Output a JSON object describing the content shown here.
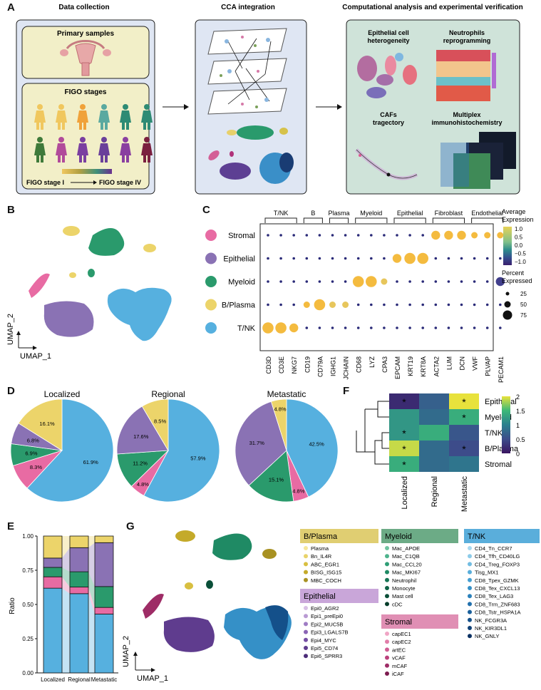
{
  "panel_letters": [
    "A",
    "B",
    "C",
    "D",
    "E",
    "F",
    "G"
  ],
  "panelA": {
    "col1_title": "Data collection",
    "col2_title": "CCA integration",
    "col3_title": "Computational analysis  and  experimental verification",
    "primary_title": "Primary samples",
    "figo_title": "FIGO stages",
    "figo_start": "FIGO stage I",
    "figo_end": "FIGO stage IV",
    "col3_labels": [
      "Epithelial cell",
      "heterogeneity",
      "Neutrophils",
      "reprogramming",
      "CAFs",
      "tragectory",
      "Multiplex",
      "immunohistochemistry"
    ],
    "figure_colors": [
      "#f0c75e",
      "#f0c75e",
      "#f0a23a",
      "#5aa9a0",
      "#2e8b74",
      "#2e8b74",
      "#3f7a3a",
      "#b14b9a",
      "#7a3fa0",
      "#6a3f9a",
      "#8a3fa0",
      "#7a1f3f"
    ]
  },
  "panelB": {
    "xlabel": "UMAP_1",
    "ylabel": "UMAP_2"
  },
  "panelC": {
    "rows": [
      {
        "name": "Stromal",
        "color": "#e86ba3"
      },
      {
        "name": "Epithelial",
        "color": "#8a72b4"
      },
      {
        "name": "Myeloid",
        "color": "#2a9a6c"
      },
      {
        "name": "B/Plasma",
        "color": "#ecd46a"
      },
      {
        "name": "T/NK",
        "color": "#56b0df"
      }
    ],
    "genes": [
      "CD3D",
      "CD3E",
      "NKG7",
      "CD19",
      "CD79A",
      "IGHG1",
      "JCHAIN",
      "CD68",
      "LYZ",
      "CPA3",
      "EPCAM",
      "KRT19",
      "KRT8A",
      "ACTA2",
      "LUM",
      "DCN",
      "VWF",
      "PLVAP",
      "PECAM1"
    ],
    "groups": [
      {
        "name": "T/NK",
        "from": 0,
        "to": 2
      },
      {
        "name": "B",
        "from": 3,
        "to": 4
      },
      {
        "name": "Plasma",
        "from": 5,
        "to": 6
      },
      {
        "name": "Myeloid",
        "from": 7,
        "to": 9
      },
      {
        "name": "Epithelial",
        "from": 10,
        "to": 12
      },
      {
        "name": "Fibroblast",
        "from": 13,
        "to": 15
      },
      {
        "name": "Endothelial",
        "from": 16,
        "to": 18
      }
    ],
    "legend_title1": "Average",
    "legend_title2": "Expression",
    "legend_ticks": [
      "1.0",
      "0.5",
      "0.0",
      "−0.5",
      "−1.0"
    ],
    "pct_title1": "Percent",
    "pct_title2": "Expressed",
    "pct_values": [
      "25",
      "50",
      "75"
    ]
  },
  "panelD": {
    "pies": [
      {
        "title": "Localized",
        "values": [
          61.9,
          8.3,
          6.9,
          6.8,
          16.1
        ],
        "labels": [
          "61.9%",
          "8.3%",
          "6.9%",
          "6.8%",
          "16.1%"
        ]
      },
      {
        "title": "Regional",
        "values": [
          57.9,
          4.8,
          11.2,
          17.6,
          8.5
        ],
        "labels": [
          "57.9%",
          "4.8%",
          "11.2%",
          "17.6%",
          "8.5%"
        ]
      },
      {
        "title": "Metastatic",
        "values": [
          42.5,
          4.8,
          15.1,
          31.7,
          4.8
        ],
        "labels": [
          "42.5%",
          "4.8%",
          "15.1%",
          "31.7%",
          "4.8%"
        ]
      }
    ]
  },
  "panelE": {
    "ylabel": "Ratio",
    "yticks": [
      "0.00",
      "0.25",
      "0.50",
      "0.75",
      "1.00"
    ],
    "categories": [
      "Localized",
      "Regional",
      "Metastatic"
    ]
  },
  "panelF": {
    "rows": [
      "Epithelial",
      "Myeloid",
      "T/NK",
      "B/Plasma",
      "Stromal"
    ],
    "cols": [
      "Localized",
      "Regional",
      "Metastatic"
    ],
    "values": [
      [
        0.2,
        0.7,
        2.0
      ],
      [
        1.2,
        0.8,
        1.4
      ],
      [
        1.2,
        1.4,
        0.6
      ],
      [
        1.9,
        0.8,
        0.5
      ],
      [
        1.4,
        0.8,
        0.9
      ]
    ],
    "stars": [
      [
        1,
        0,
        1
      ],
      [
        0,
        0,
        1
      ],
      [
        1,
        0,
        0
      ],
      [
        1,
        0,
        1
      ],
      [
        1,
        0,
        0
      ]
    ],
    "legend_ticks": [
      "2",
      "1.5",
      "1",
      "0.5",
      "0"
    ],
    "star": "*"
  },
  "panelG": {
    "xlabel": "UMAP_1",
    "ylabel": "UMAP_2",
    "boxes": [
      {
        "title": "B/Plasma",
        "color": "#e0ce72",
        "items": [
          "Plasma",
          "Bn_IL4R",
          "ABC_EGR1",
          "BISG_ISG15",
          "MBC_COCH"
        ],
        "dots": [
          "#f5e79a",
          "#e8d36a",
          "#d8bf40",
          "#c4aa2a",
          "#a89122"
        ]
      },
      {
        "title": "Epithelial",
        "color": "#c9a6d9",
        "items": [
          "Epi0_AGR2",
          "Epi1_preEpi0",
          "Epi2_MUC5B",
          "Epi3_LGALS7B",
          "Epi4_MYC",
          "Epi5_CD74",
          "Epi6_SPRR3"
        ],
        "dots": [
          "#d8c0e6",
          "#b99ad3",
          "#9f7cc4",
          "#8a64b5",
          "#754ea4",
          "#5f3c8e",
          "#4b2c78"
        ]
      },
      {
        "title": "Myeloid",
        "color": "#6cab86",
        "items": [
          "Mac_APOE",
          "Mac_C1QB",
          "Mac_CCL20",
          "Mac_MKI67",
          "Neutrophil",
          "Monocyte",
          "Mast cell",
          "cDC"
        ],
        "dots": [
          "#6fc3a0",
          "#4db38c",
          "#2f9e76",
          "#1f8a64",
          "#167554",
          "#0f6246",
          "#0a4f38",
          "#063d2a"
        ]
      },
      {
        "title": "Stromal",
        "color": "#e08fb4",
        "items": [
          "capEC1",
          "capEC2",
          "artEC",
          "vCAF",
          "mCAF",
          "iCAF"
        ],
        "dots": [
          "#f0a5c5",
          "#e17ea9",
          "#d05d93",
          "#bb417c",
          "#9e2c66",
          "#7d1c50"
        ]
      },
      {
        "title": "T/NK",
        "color": "#5aaedb",
        "items": [
          "CD4_Tn_CCR7",
          "CD4_Tfh_CD40LG",
          "CD4_Treg_FOXP3",
          "Tisg_MX1",
          "CD8_Tpex_GZMK",
          "CD8_Tex_CXCL13",
          "CD8_Tex_LAG3",
          "CD8_Trm_ZNF683",
          "CD8_Tstr_HSPA1A",
          "NK_FCGR3A",
          "NK_KIR3DL1",
          "NK_GNLY"
        ],
        "dots": [
          "#a8d8ef",
          "#8ccbe9",
          "#72bde2",
          "#59aedb",
          "#459fd2",
          "#3590c7",
          "#2a80bb",
          "#2170ad",
          "#1a609c",
          "#14508a",
          "#0f4076",
          "#0a3062"
        ]
      }
    ]
  },
  "colors": {
    "tnk": "#56b0df",
    "stromal": "#e86ba3",
    "myeloid": "#2a9a6c",
    "epithelial": "#8a72b4",
    "bplasma": "#ecd46a"
  }
}
